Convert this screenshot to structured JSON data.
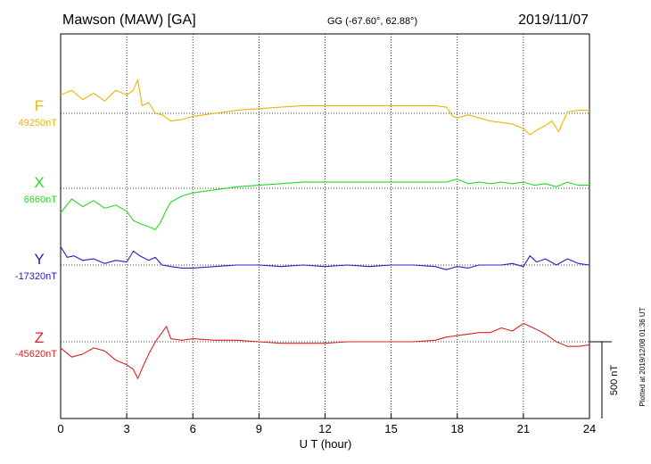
{
  "header": {
    "station": "Mawson (MAW)  [GA]",
    "coords": "GG (-67.60°,  62.88°)",
    "date": "2019/11/07"
  },
  "plotted_note": "Plotted at 2019/12/08 01:36 UT",
  "scale_label": "500 nT",
  "chart_data": {
    "type": "line",
    "xlabel": "U T (hour)",
    "xlim": [
      0,
      24
    ],
    "x_ticks": [
      "0",
      "3",
      "6",
      "9",
      "12",
      "15",
      "18",
      "21",
      "24"
    ],
    "y_unit": "nT",
    "scale_bar_nT": 500,
    "grid": "dotted verticals every 3 h, dotted baseline per component",
    "series": [
      {
        "name": "F",
        "baseline_label": "49250nT",
        "baseline": 49250,
        "color": "#f0b400",
        "x": [
          0,
          0.5,
          1,
          1.5,
          2,
          2.5,
          3,
          3.3,
          3.5,
          3.7,
          4,
          4.3,
          4.6,
          5,
          5.5,
          6,
          7,
          8,
          9,
          10,
          11,
          12,
          13,
          14,
          15,
          16,
          17,
          17.5,
          17.8,
          18,
          18.5,
          19,
          19.5,
          20,
          20.5,
          21,
          21.3,
          21.6,
          22,
          22.3,
          22.6,
          23,
          23.5,
          24
        ],
        "values": [
          49370,
          49400,
          49340,
          49380,
          49330,
          49400,
          49370,
          49400,
          49470,
          49300,
          49320,
          49250,
          49240,
          49200,
          49210,
          49230,
          49250,
          49270,
          49280,
          49290,
          49300,
          49300,
          49300,
          49300,
          49300,
          49300,
          49300,
          49290,
          49230,
          49220,
          49240,
          49220,
          49200,
          49190,
          49180,
          49150,
          49110,
          49140,
          49170,
          49200,
          49130,
          49260,
          49270,
          49270
        ]
      },
      {
        "name": "X",
        "baseline_label": "6660nT",
        "baseline": 6660,
        "color": "#22dd22",
        "x": [
          0,
          0.5,
          1,
          1.5,
          2,
          2.5,
          3,
          3.3,
          3.6,
          4,
          4.3,
          4.5,
          4.8,
          5,
          5.5,
          6,
          7,
          8,
          9,
          10,
          11,
          12,
          13,
          14,
          15,
          16,
          17,
          17.5,
          18,
          18.5,
          19,
          19.5,
          20,
          20.5,
          21,
          21.5,
          22,
          22.5,
          23,
          23.5,
          24
        ],
        "values": [
          6500,
          6590,
          6540,
          6580,
          6530,
          6550,
          6510,
          6450,
          6430,
          6410,
          6390,
          6430,
          6520,
          6570,
          6610,
          6630,
          6650,
          6670,
          6680,
          6690,
          6700,
          6700,
          6700,
          6700,
          6700,
          6700,
          6700,
          6700,
          6720,
          6690,
          6700,
          6690,
          6700,
          6690,
          6700,
          6680,
          6690,
          6670,
          6700,
          6680,
          6680
        ]
      },
      {
        "name": "Y",
        "baseline_label": "-17320nT",
        "baseline": -17320,
        "color": "#2020cc",
        "x": [
          0,
          0.3,
          0.6,
          1,
          1.5,
          2,
          2.5,
          3,
          3.3,
          3.6,
          4,
          4.3,
          4.6,
          5,
          5.5,
          6,
          7,
          8,
          9,
          10,
          11,
          12,
          13,
          14,
          15,
          16,
          17,
          17.5,
          18,
          18.5,
          19,
          20,
          20.5,
          21,
          21.3,
          21.6,
          22,
          22.5,
          23,
          23.5,
          24
        ],
        "values": [
          -17200,
          -17270,
          -17260,
          -17290,
          -17280,
          -17310,
          -17290,
          -17300,
          -17230,
          -17260,
          -17290,
          -17270,
          -17320,
          -17330,
          -17340,
          -17340,
          -17330,
          -17320,
          -17320,
          -17330,
          -17320,
          -17330,
          -17320,
          -17330,
          -17320,
          -17320,
          -17330,
          -17350,
          -17330,
          -17340,
          -17320,
          -17320,
          -17310,
          -17330,
          -17260,
          -17300,
          -17280,
          -17320,
          -17280,
          -17310,
          -17320
        ]
      },
      {
        "name": "Z",
        "baseline_label": "-45620nT",
        "baseline": -45620,
        "color": "#e02020",
        "x": [
          0,
          0.5,
          1,
          1.5,
          2,
          2.5,
          3,
          3.3,
          3.5,
          3.8,
          4,
          4.3,
          4.6,
          4.8,
          5,
          5.5,
          6,
          7,
          8,
          9,
          10,
          11,
          12,
          13,
          14,
          15,
          16,
          17,
          17.5,
          18,
          18.5,
          19,
          19.5,
          20,
          20.5,
          21,
          21.3,
          21.6,
          22,
          22.5,
          23,
          23.5,
          24
        ],
        "values": [
          -45660,
          -45720,
          -45700,
          -45660,
          -45680,
          -45740,
          -45770,
          -45800,
          -45860,
          -45760,
          -45700,
          -45620,
          -45560,
          -45520,
          -45600,
          -45610,
          -45600,
          -45610,
          -45610,
          -45620,
          -45630,
          -45630,
          -45630,
          -45620,
          -45620,
          -45620,
          -45620,
          -45610,
          -45590,
          -45580,
          -45570,
          -45560,
          -45560,
          -45530,
          -45550,
          -45500,
          -45520,
          -45540,
          -45570,
          -45620,
          -45650,
          -45650,
          -45640
        ]
      }
    ]
  }
}
